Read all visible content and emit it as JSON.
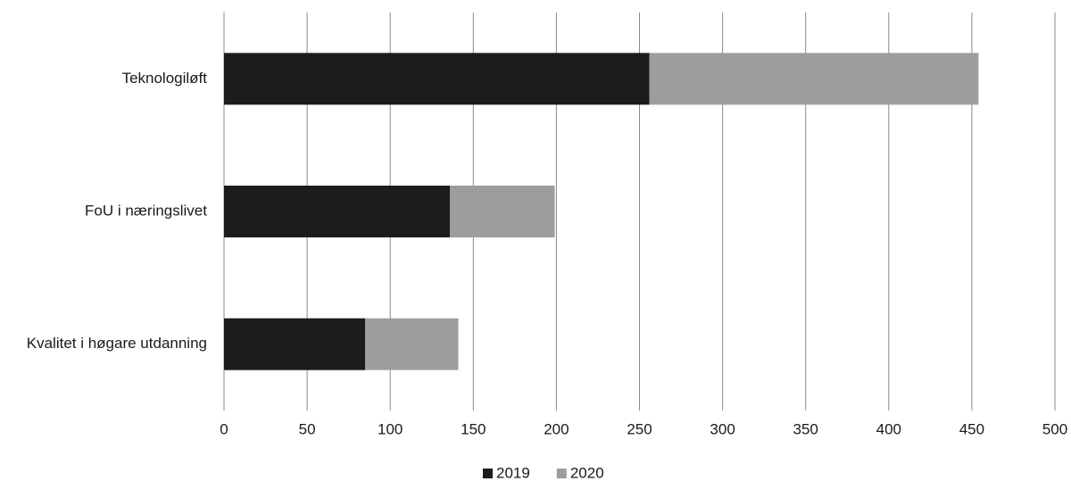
{
  "chart_data": {
    "type": "stacked-barh",
    "categories": [
      "Teknologiløft",
      "FoU i næringslivet",
      "Kvalitet i høgare utdanning"
    ],
    "series": [
      {
        "name": "2019",
        "color": "#1c1c1c",
        "values": [
          256,
          136,
          85
        ]
      },
      {
        "name": "2020",
        "color": "#9d9d9d",
        "values": [
          198,
          63,
          56
        ]
      }
    ],
    "xlim": [
      0,
      500
    ],
    "xticks": [
      0,
      50,
      100,
      150,
      200,
      250,
      300,
      350,
      400,
      450,
      500
    ],
    "grid": true,
    "legend": "bottom"
  }
}
